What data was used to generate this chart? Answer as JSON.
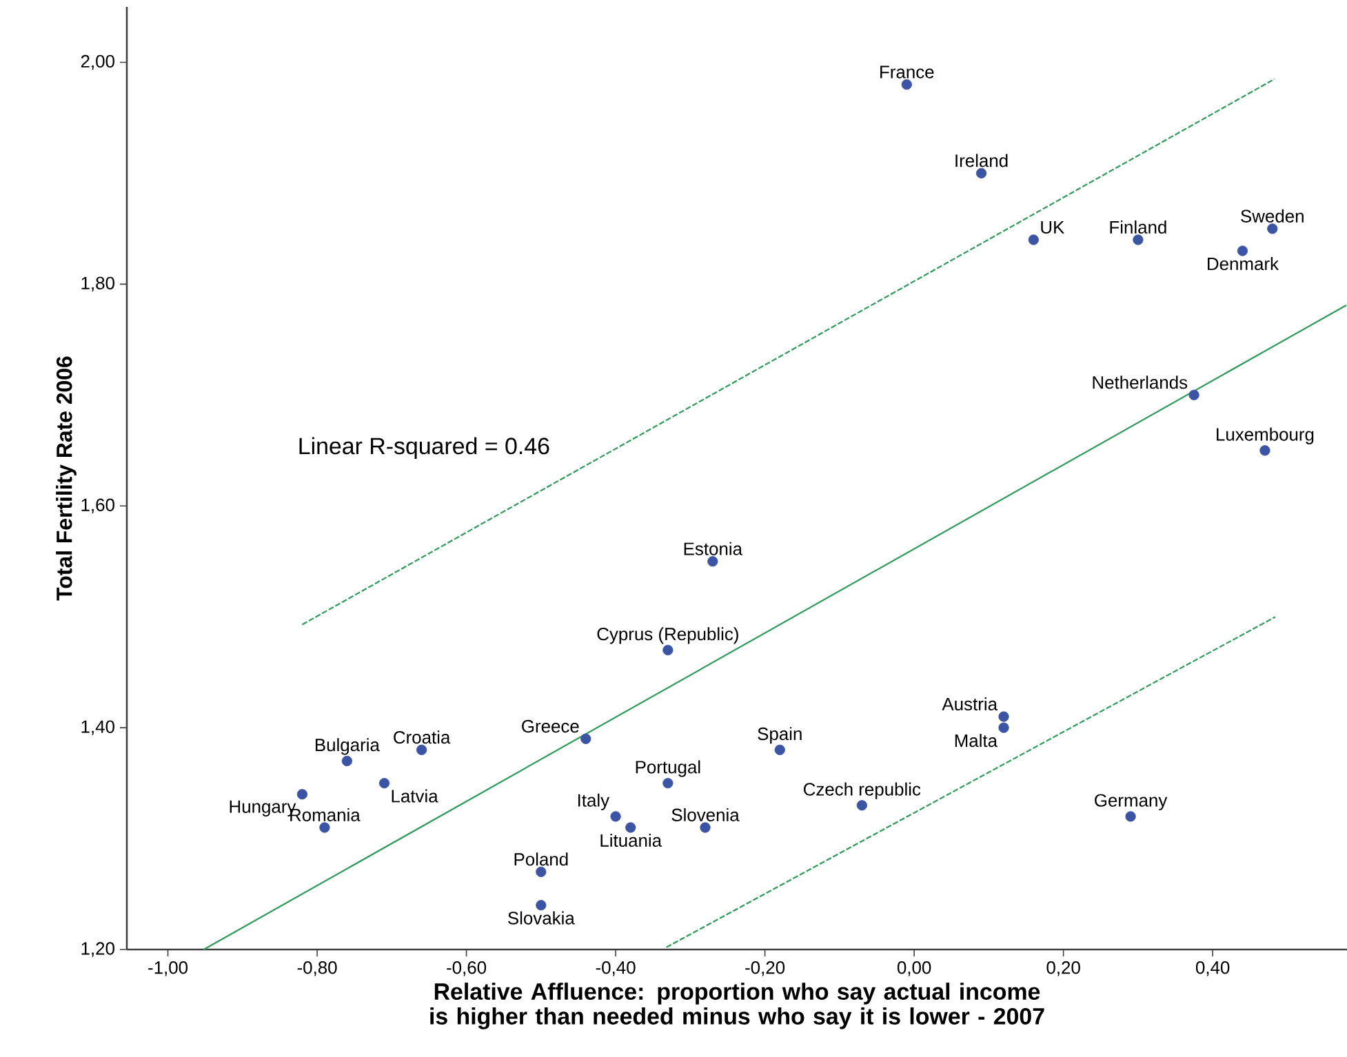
{
  "chart_data": {
    "type": "scatter",
    "xlabel": "Relative Affluence: proportion who say actual income is higher than needed minus who say it is lower - 2007",
    "ylabel": "Total Fertility Rate 2006",
    "xlim": [
      -1.055,
      0.58
    ],
    "ylim": [
      1.2,
      2.05
    ],
    "xticks": [
      {
        "value": -1,
        "label": "-1,00"
      },
      {
        "value": -0.8,
        "label": "-0,80"
      },
      {
        "value": -0.6,
        "label": "-0,60"
      },
      {
        "value": -0.4,
        "label": "-0,40"
      },
      {
        "value": -0.2,
        "label": "-0,20"
      },
      {
        "value": 0,
        "label": "0,00"
      },
      {
        "value": 0.2,
        "label": "0,20"
      },
      {
        "value": 0.4,
        "label": "0,40"
      }
    ],
    "yticks": [
      {
        "value": 1.2,
        "label": "1,20"
      },
      {
        "value": 1.4,
        "label": "1,40"
      },
      {
        "value": 1.6,
        "label": "1,60"
      },
      {
        "value": 1.8,
        "label": "1,80"
      },
      {
        "value": 2.0,
        "label": "2,00"
      }
    ],
    "grid": false,
    "series": [
      {
        "color": "#3b54a4",
        "marker": "circle",
        "x": [
          -0.01,
          0.09,
          0.16,
          0.3,
          0.48,
          0.44,
          0.375,
          0.47,
          -0.27,
          -0.33,
          -0.44,
          -0.18,
          0.12,
          0.12,
          -0.33,
          -0.07,
          0.29,
          -0.4,
          -0.38,
          -0.28,
          -0.5,
          -0.5,
          -0.76,
          -0.66,
          -0.71,
          -0.82,
          -0.79
        ],
        "values": [
          1.98,
          1.9,
          1.84,
          1.84,
          1.85,
          1.83,
          1.7,
          1.65,
          1.55,
          1.47,
          1.39,
          1.38,
          1.41,
          1.4,
          1.35,
          1.33,
          1.32,
          1.32,
          1.31,
          1.31,
          1.27,
          1.24,
          1.37,
          1.38,
          1.35,
          1.34,
          1.31
        ]
      },
      {
        "type": "line",
        "color": "#2e9a5a",
        "line_style": "solid",
        "marker": "none",
        "x": [
          -0.952,
          0.579
        ],
        "values": [
          1.2,
          1.781
        ]
      },
      {
        "type": "line",
        "color": "#2e9a5a",
        "line_style": "dashed",
        "marker": "none",
        "x": [
          -0.82,
          0.483
        ],
        "values": [
          1.493,
          1.985
        ]
      },
      {
        "type": "line",
        "color": "#2e9a5a",
        "line_style": "dashed",
        "marker": "none",
        "x": [
          -0.332,
          0.484
        ],
        "values": [
          1.202,
          1.5
        ]
      }
    ],
    "annotations": [
      {
        "text": "France",
        "x": -0.01,
        "y": 1.98
      },
      {
        "text": "Ireland",
        "x": 0.09,
        "y": 1.9
      },
      {
        "text": "UK",
        "x": 0.16,
        "y": 1.84
      },
      {
        "text": "Finland",
        "x": 0.3,
        "y": 1.84
      },
      {
        "text": "Sweden",
        "x": 0.48,
        "y": 1.85
      },
      {
        "text": "Denmark",
        "x": 0.44,
        "y": 1.83
      },
      {
        "text": "Netherlands",
        "x": 0.375,
        "y": 1.7
      },
      {
        "text": "Luxembourg",
        "x": 0.47,
        "y": 1.65
      },
      {
        "text": "Estonia",
        "x": -0.27,
        "y": 1.55
      },
      {
        "text": "Cyprus (Republic)",
        "x": -0.33,
        "y": 1.47
      },
      {
        "text": "Greece",
        "x": -0.44,
        "y": 1.39
      },
      {
        "text": "Spain",
        "x": -0.18,
        "y": 1.38
      },
      {
        "text": "Austria",
        "x": 0.12,
        "y": 1.41
      },
      {
        "text": "Malta",
        "x": 0.12,
        "y": 1.4
      },
      {
        "text": "Portugal",
        "x": -0.33,
        "y": 1.35
      },
      {
        "text": "Czech republic",
        "x": -0.07,
        "y": 1.33
      },
      {
        "text": "Germany",
        "x": 0.29,
        "y": 1.32
      },
      {
        "text": "Italy",
        "x": -0.4,
        "y": 1.32
      },
      {
        "text": "Lituania",
        "x": -0.38,
        "y": 1.31
      },
      {
        "text": "Slovenia",
        "x": -0.28,
        "y": 1.31
      },
      {
        "text": "Poland",
        "x": -0.5,
        "y": 1.27
      },
      {
        "text": "Slovakia",
        "x": -0.5,
        "y": 1.24
      },
      {
        "text": "Bulgaria",
        "x": -0.76,
        "y": 1.37
      },
      {
        "text": "Croatia",
        "x": -0.66,
        "y": 1.38
      },
      {
        "text": "Latvia",
        "x": -0.71,
        "y": 1.35
      },
      {
        "text": "Hungary",
        "x": -0.82,
        "y": 1.34
      },
      {
        "text": "Romania",
        "x": -0.79,
        "y": 1.31
      },
      "Linear R-squared = 0.46"
    ]
  }
}
